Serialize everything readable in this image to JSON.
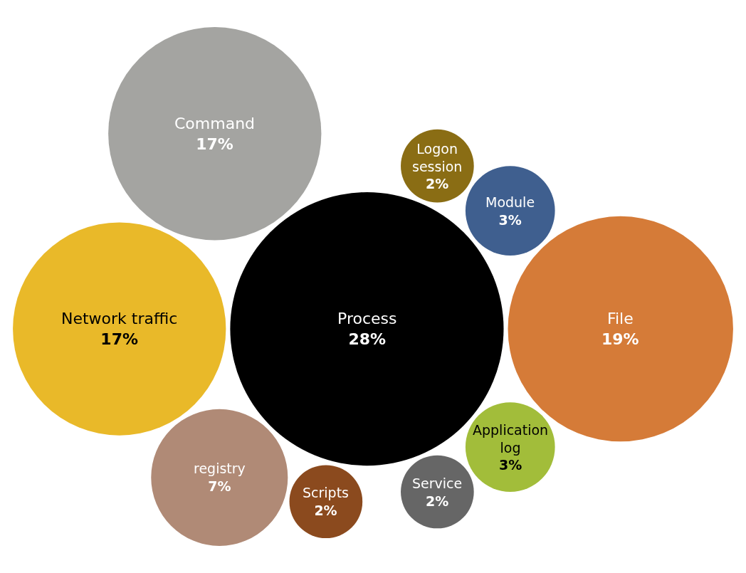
{
  "chart_data": {
    "type": "other",
    "categories": [
      "Process",
      "File",
      "Network traffic",
      "Command",
      "registry",
      "Application log",
      "Module",
      "Service",
      "Logon session",
      "Scripts"
    ],
    "values": [
      28,
      19,
      17,
      17,
      7,
      3,
      3,
      2,
      2,
      2
    ],
    "value_labels": [
      "28%",
      "19%",
      "17%",
      "17%",
      "7%",
      "3%",
      "3%",
      "2%",
      "2%",
      "2%"
    ],
    "colors": [
      "#000000",
      "#d57b38",
      "#e9b929",
      "#a4a4a1",
      "#b08a76",
      "#a2bd3a",
      "#3f5f8f",
      "#666666",
      "#8a6d14",
      "#8b4a1e"
    ]
  }
}
